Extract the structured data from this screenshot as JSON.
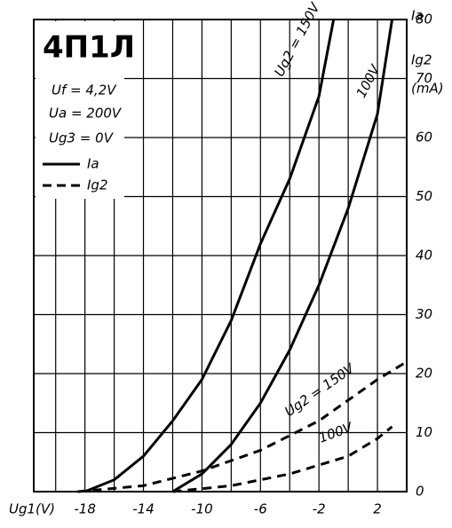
{
  "chart_data": {
    "type": "line",
    "title": "4П1Л",
    "params": [
      "Uf = 4,2V",
      "Ua = 200V",
      "Ug3 = 0V"
    ],
    "legend": [
      {
        "label": "Ia",
        "dash": false
      },
      {
        "label": "Ig2",
        "dash": true
      }
    ],
    "y_label": [
      "Ia",
      "Ig2",
      "(mA)"
    ],
    "x_label": "Ug1(V)",
    "xlim": [
      -21.5,
      4
    ],
    "ylim": [
      0,
      80
    ],
    "xticks": [
      -18,
      -14,
      -10,
      -6,
      -2,
      2
    ],
    "xgrid": [
      -20,
      -18,
      -16,
      -14,
      -12,
      -10,
      -8,
      -6,
      -4,
      -2,
      0,
      2
    ],
    "yticks": [
      0,
      10,
      20,
      30,
      40,
      50,
      60,
      70,
      80
    ],
    "grid": true,
    "color": "#000000",
    "series": [
      {
        "name": "Ug2 = 150V",
        "dash": false,
        "x": [
          -18,
          -16,
          -14,
          -12,
          -10,
          -8,
          -6,
          -4,
          -2,
          -1
        ],
        "values": [
          0,
          2,
          6,
          12,
          19,
          29,
          42,
          53,
          67,
          80
        ]
      },
      {
        "name": "100V",
        "dash": false,
        "x": [
          -12,
          -10,
          -8,
          -6,
          -4,
          -2,
          0,
          2,
          3
        ],
        "values": [
          0,
          3,
          8,
          15,
          24,
          35,
          48,
          64,
          80
        ]
      },
      {
        "name": "Ug2 = 150V",
        "dash": true,
        "x": [
          -18.5,
          -14,
          -10,
          -6,
          -2,
          2,
          4
        ],
        "values": [
          0,
          1,
          3.5,
          7,
          12,
          19,
          22
        ]
      },
      {
        "name": "100V",
        "dash": true,
        "x": [
          -12,
          -8,
          -4,
          0,
          2,
          3
        ],
        "values": [
          0,
          1,
          3,
          6,
          9,
          11
        ]
      }
    ]
  }
}
